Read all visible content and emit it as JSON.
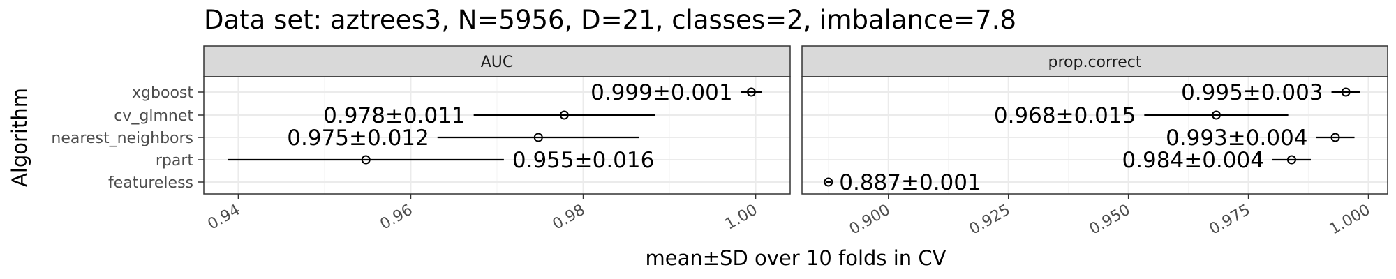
{
  "title": "Data set: aztrees3, N=5956, D=21, classes=2, imbalance=7.8",
  "chart_data": {
    "type": "scatter",
    "title": "Data set: aztrees3, N=5956, D=21, classes=2, imbalance=7.8",
    "xlabel": "mean±SD over 10 folds in CV",
    "ylabel": "Algorithm",
    "grid": true,
    "categories": [
      "xgboost",
      "cv_glmnet",
      "nearest_neighbors",
      "rpart",
      "featureless"
    ],
    "panels": [
      {
        "name": "AUC",
        "xlim": [
          0.936,
          1.004
        ],
        "xticks": [
          0.94,
          0.96,
          0.98,
          1.0
        ],
        "xtick_labels": [
          "0.94",
          "0.96",
          "0.98",
          "1.00"
        ],
        "points": [
          {
            "algorithm": "xgboost",
            "mean": 0.9995,
            "sd": 0.0012,
            "label": "0.999±0.001",
            "label_side": "left"
          },
          {
            "algorithm": "cv_glmnet",
            "mean": 0.9778,
            "sd": 0.0105,
            "label": "0.978±0.011",
            "label_side": "left"
          },
          {
            "algorithm": "nearest_neighbors",
            "mean": 0.9748,
            "sd": 0.0117,
            "label": "0.975±0.012",
            "label_side": "left"
          },
          {
            "algorithm": "rpart",
            "mean": 0.9548,
            "sd": 0.016,
            "label": "0.955±0.016",
            "label_side": "right"
          }
        ]
      },
      {
        "name": "prop.correct",
        "xlim": [
          0.882,
          1.004
        ],
        "xticks": [
          0.9,
          0.925,
          0.95,
          0.975,
          1.0
        ],
        "xtick_labels": [
          "0.900",
          "0.925",
          "0.950",
          "0.975",
          "1.000"
        ],
        "points": [
          {
            "algorithm": "xgboost",
            "mean": 0.9953,
            "sd": 0.003,
            "label": "0.995±0.003",
            "label_side": "left"
          },
          {
            "algorithm": "cv_glmnet",
            "mean": 0.9683,
            "sd": 0.015,
            "label": "0.968±0.015",
            "label_side": "left"
          },
          {
            "algorithm": "nearest_neighbors",
            "mean": 0.9931,
            "sd": 0.004,
            "label": "0.993±0.004",
            "label_side": "left"
          },
          {
            "algorithm": "rpart",
            "mean": 0.984,
            "sd": 0.004,
            "label": "0.984±0.004",
            "label_side": "left"
          },
          {
            "algorithm": "featureless",
            "mean": 0.8875,
            "sd": 0.0005,
            "label": "0.887±0.001",
            "label_side": "right"
          }
        ]
      }
    ]
  },
  "colors": {
    "panel_bg": "#ffffff",
    "panel_border": "#333333",
    "strip_bg": "#d9d9d9",
    "grid_major": "#ebebeb",
    "grid_minor": "#f5f5f5",
    "mark": "#000000"
  }
}
